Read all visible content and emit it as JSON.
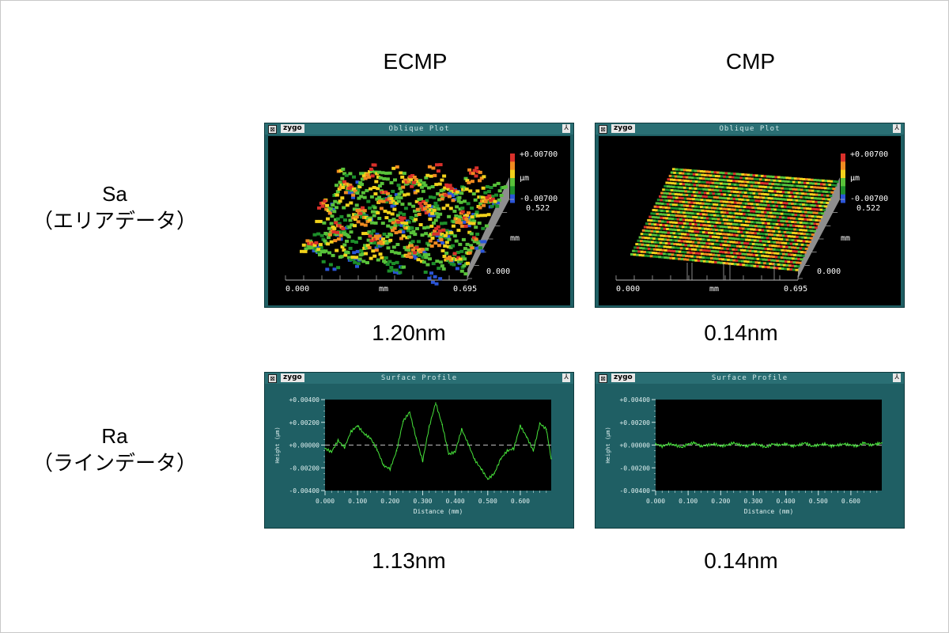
{
  "columns": {
    "left": "ECMP",
    "right": "CMP"
  },
  "rows": {
    "sa": {
      "line1": "Sa",
      "line2": "（エリアデータ）"
    },
    "ra": {
      "line1": "Ra",
      "line2": "（ラインデータ）"
    }
  },
  "values": {
    "ecmp_sa": "1.20nm",
    "cmp_sa": "0.14nm",
    "ecmp_ra": "1.13nm",
    "cmp_ra": "0.14nm"
  },
  "window": {
    "logo": "zygo",
    "close_glyph": "⊠",
    "menu_glyph": "⅄",
    "oblique_title": "Oblique Plot",
    "profile_title": "Surface Profile"
  },
  "oblique": {
    "scale_top": "+0.00700",
    "scale_unit": "µm",
    "scale_bottom": "-0.00700",
    "y_max": "0.522",
    "y_unit": "mm",
    "y_min": "0.000",
    "x_min": "0.000",
    "x_unit": "mm",
    "x_max": "0.695",
    "colors": [
      "#d9302a",
      "#f08a20",
      "#f2d21b",
      "#58c23a",
      "#1d8f2a",
      "#2b55d8"
    ]
  },
  "chart_data": [
    {
      "type": "line",
      "panel": "ECMP",
      "title": "Surface Profile",
      "xlabel": "Distance (mm)",
      "ylabel": "Height (µm)",
      "xlim": [
        0,
        0.695
      ],
      "ylim": [
        -0.004,
        0.004
      ],
      "x_ticks": [
        "0.000",
        "0.100",
        "0.200",
        "0.300",
        "0.400",
        "0.500",
        "0.600"
      ],
      "y_ticks": [
        "+0.00400",
        "+0.00200",
        "+0.00000",
        "-0.00200",
        "-0.00400"
      ],
      "x": [
        0.0,
        0.02,
        0.04,
        0.06,
        0.08,
        0.1,
        0.12,
        0.14,
        0.16,
        0.18,
        0.2,
        0.22,
        0.24,
        0.26,
        0.28,
        0.3,
        0.32,
        0.34,
        0.36,
        0.38,
        0.4,
        0.42,
        0.44,
        0.46,
        0.48,
        0.5,
        0.52,
        0.54,
        0.56,
        0.58,
        0.6,
        0.62,
        0.64,
        0.66,
        0.68,
        0.695
      ],
      "y": [
        -0.0003,
        -0.0006,
        0.0004,
        -0.0002,
        0.0012,
        0.0017,
        0.001,
        0.0006,
        -0.0004,
        -0.0018,
        -0.0021,
        -0.0005,
        0.0021,
        0.0029,
        0.0006,
        -0.0014,
        0.0016,
        0.0037,
        0.0018,
        -0.0008,
        -0.0006,
        0.0014,
        0.0001,
        -0.0013,
        -0.0021,
        -0.003,
        -0.0025,
        -0.0012,
        -0.0005,
        -0.0003,
        0.0017,
        0.0007,
        -0.0005,
        0.0019,
        0.0014,
        -0.0012
      ],
      "reference_line": 0.0
    },
    {
      "type": "line",
      "panel": "CMP",
      "title": "Surface Profile",
      "xlabel": "Distance (mm)",
      "ylabel": "Height (µm)",
      "xlim": [
        0,
        0.695
      ],
      "ylim": [
        -0.004,
        0.004
      ],
      "x_ticks": [
        "0.000",
        "0.100",
        "0.200",
        "0.300",
        "0.400",
        "0.500",
        "0.600"
      ],
      "y_ticks": [
        "+0.00400",
        "+0.00200",
        "+0.00000",
        "-0.00200",
        "-0.00400"
      ],
      "x": [
        0.0,
        0.02,
        0.04,
        0.06,
        0.08,
        0.1,
        0.12,
        0.14,
        0.16,
        0.18,
        0.2,
        0.22,
        0.24,
        0.26,
        0.28,
        0.3,
        0.32,
        0.34,
        0.36,
        0.38,
        0.4,
        0.42,
        0.44,
        0.46,
        0.48,
        0.5,
        0.52,
        0.54,
        0.56,
        0.58,
        0.6,
        0.62,
        0.64,
        0.66,
        0.68,
        0.695
      ],
      "y": [
        0.0001,
        -0.0001,
        0.0001,
        0.0,
        -0.0002,
        0.0001,
        0.0002,
        -0.0001,
        0.0,
        0.0001,
        -0.0001,
        0.0,
        0.0002,
        0.0,
        -0.0001,
        0.0001,
        0.0,
        -0.0002,
        0.0001,
        0.0,
        0.0001,
        -0.0001,
        0.0,
        0.0002,
        -0.0001,
        0.0,
        0.0001,
        -0.0001,
        0.0,
        0.0001,
        0.0,
        -0.0001,
        0.0002,
        0.0,
        0.0001,
        0.0002
      ],
      "reference_line": 0.0
    }
  ]
}
